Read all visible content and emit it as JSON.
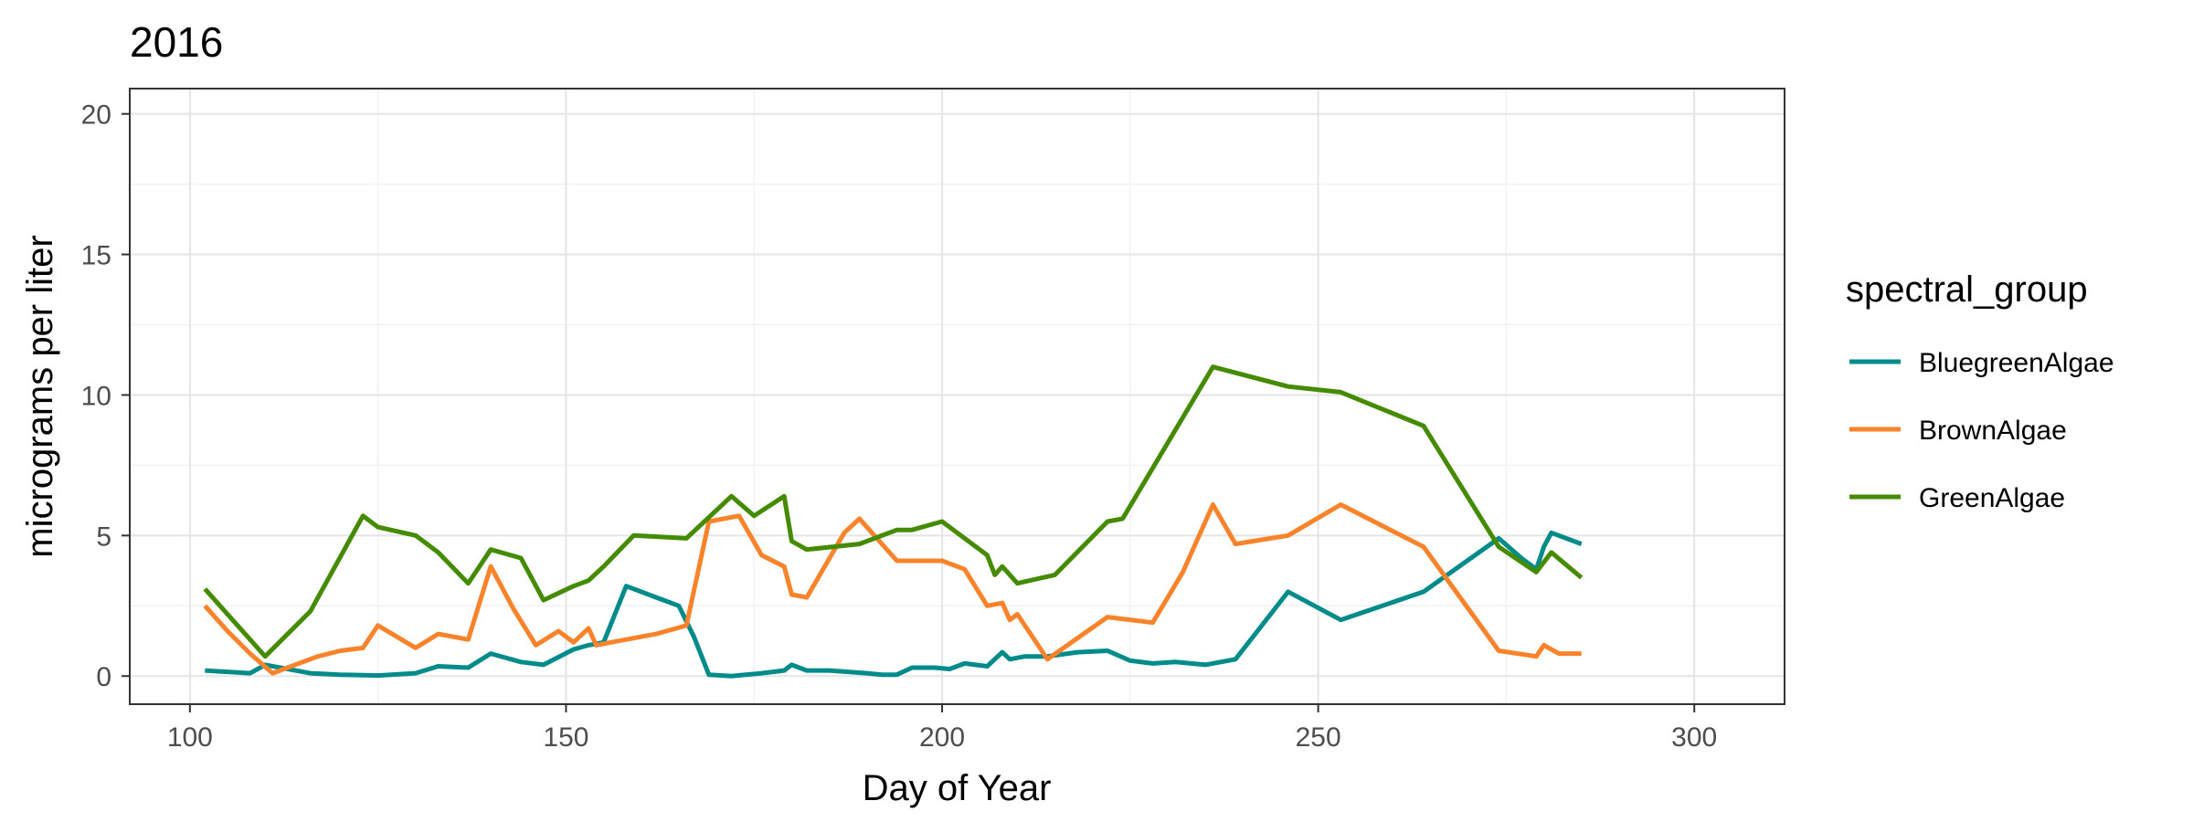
{
  "chart_data": {
    "type": "line",
    "title": "2016",
    "xlabel": "Day of Year",
    "ylabel": "micrograms per liter",
    "xlim": [
      92,
      312
    ],
    "ylim": [
      -1,
      20.9
    ],
    "x_ticks": [
      100,
      150,
      200,
      250,
      300
    ],
    "y_ticks": [
      0,
      5,
      10,
      15,
      20
    ],
    "grid": true,
    "legend": {
      "title": "spectral_group",
      "position": "right"
    },
    "series": [
      {
        "name": "BluegreenAlgae",
        "color": "#008B8B",
        "x": [
          102,
          105,
          108,
          110,
          113,
          116,
          120,
          125,
          130,
          133,
          137,
          140,
          144,
          147,
          151,
          153,
          155,
          158,
          162,
          165,
          167,
          169,
          172,
          176,
          179,
          180,
          182,
          185,
          190,
          192,
          194,
          196,
          199,
          201,
          203,
          206,
          208,
          209,
          211,
          214,
          218,
          222,
          225,
          228,
          231,
          235,
          239,
          246,
          253,
          264,
          274,
          277,
          279,
          280,
          281,
          285
        ],
        "y": [
          0.2,
          0.15,
          0.1,
          0.4,
          0.25,
          0.1,
          0.05,
          0.02,
          0.1,
          0.35,
          0.3,
          0.8,
          0.5,
          0.4,
          0.95,
          1.1,
          1.2,
          3.2,
          2.8,
          2.5,
          1.4,
          0.05,
          0.0,
          0.1,
          0.2,
          0.4,
          0.2,
          0.2,
          0.1,
          0.05,
          0.05,
          0.3,
          0.3,
          0.25,
          0.45,
          0.35,
          0.85,
          0.6,
          0.7,
          0.7,
          0.85,
          0.9,
          0.55,
          0.45,
          0.5,
          0.4,
          0.6,
          3.0,
          2.0,
          3.0,
          4.9,
          4.2,
          3.8,
          4.6,
          5.1,
          4.7
        ]
      },
      {
        "name": "BrownAlgae",
        "color": "#F8832B",
        "x": [
          102,
          105,
          108,
          111,
          114,
          117,
          120,
          123,
          125,
          130,
          133,
          137,
          140,
          143,
          146,
          149,
          151,
          153,
          154,
          158,
          162,
          166,
          169,
          173,
          176,
          179,
          180,
          182,
          187,
          189,
          194,
          200,
          203,
          206,
          208,
          209,
          210,
          214,
          222,
          228,
          232,
          236,
          239,
          246,
          253,
          264,
          274,
          279,
          280,
          282,
          285
        ],
        "y": [
          2.5,
          1.6,
          0.8,
          0.1,
          0.4,
          0.7,
          0.9,
          1.0,
          1.8,
          1.0,
          1.5,
          1.3,
          3.9,
          2.4,
          1.1,
          1.6,
          1.2,
          1.7,
          1.1,
          1.3,
          1.5,
          1.8,
          5.5,
          5.7,
          4.3,
          3.9,
          2.9,
          2.8,
          5.1,
          5.6,
          4.1,
          4.1,
          3.8,
          2.5,
          2.6,
          2.0,
          2.2,
          0.6,
          2.1,
          1.9,
          3.7,
          6.1,
          4.7,
          5.0,
          6.1,
          4.6,
          0.9,
          0.7,
          1.1,
          0.8,
          0.8
        ]
      },
      {
        "name": "GreenAlgae",
        "color": "#458B00",
        "x": [
          102,
          110,
          116,
          123,
          125,
          130,
          133,
          137,
          140,
          144,
          147,
          151,
          153,
          155,
          159,
          166,
          172,
          175,
          179,
          180,
          182,
          189,
          194,
          196,
          200,
          206,
          207,
          208,
          210,
          215,
          222,
          224,
          236,
          246,
          253,
          264,
          274,
          279,
          281,
          285
        ],
        "y": [
          3.1,
          0.7,
          2.3,
          5.7,
          5.3,
          5.0,
          4.4,
          3.3,
          4.5,
          4.2,
          2.7,
          3.2,
          3.4,
          3.9,
          5.0,
          4.9,
          6.4,
          5.7,
          6.4,
          4.8,
          4.5,
          4.7,
          5.2,
          5.2,
          5.5,
          4.3,
          3.6,
          3.9,
          3.3,
          3.6,
          5.5,
          5.6,
          11.0,
          10.3,
          10.1,
          8.9,
          4.6,
          3.7,
          4.4,
          3.5
        ]
      }
    ]
  }
}
